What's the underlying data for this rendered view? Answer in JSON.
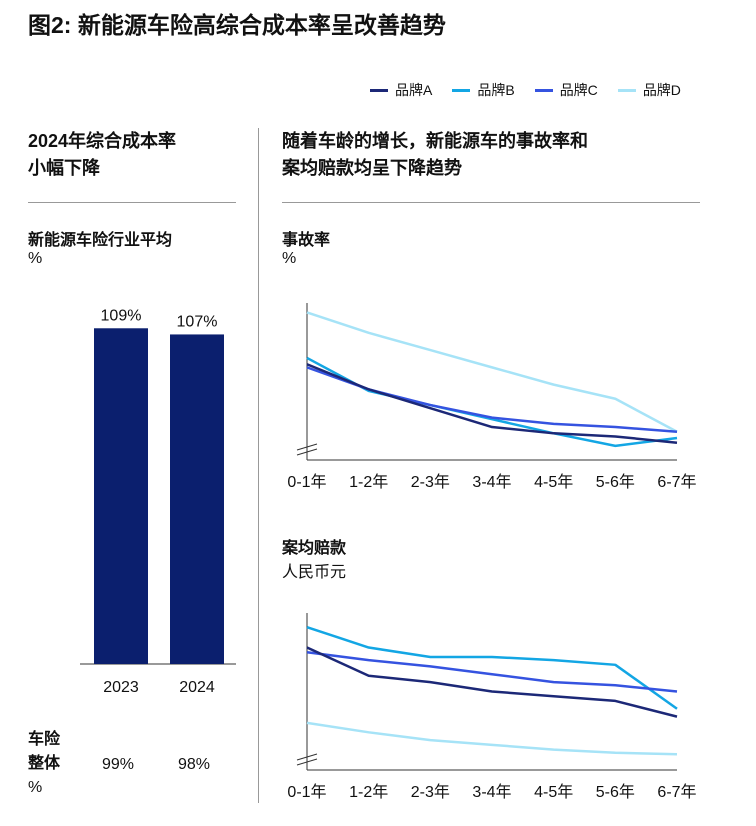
{
  "title": "图2: 新能源车险高综合成本率呈改善趋势",
  "legend": [
    {
      "name": "品牌A",
      "color": "#1c2877"
    },
    {
      "name": "品牌B",
      "color": "#13a6e4"
    },
    {
      "name": "品牌C",
      "color": "#3553e0"
    },
    {
      "name": "品牌D",
      "color": "#a6e3f7"
    }
  ],
  "left": {
    "heading1": "2024年综合成本率",
    "heading2": "小幅下降",
    "subtitle": "新能源车险行业平均",
    "unit": "%",
    "overall_label1": "车险",
    "overall_label2": "整体",
    "overall_unit": "%"
  },
  "right": {
    "heading1": "随着车龄的增长，新能源车的事故率和",
    "heading2": "案均赔款均呈下降趋势"
  },
  "chart_data": [
    {
      "type": "bar",
      "title": "新能源车险行业平均",
      "ylabel": "%",
      "categories": [
        "2023",
        "2024"
      ],
      "values": [
        109,
        107
      ],
      "data_labels": [
        "109%",
        "107%"
      ],
      "color": "#0b1f6e",
      "overall": {
        "label": "车险整体 %",
        "values": [
          "99%",
          "98%"
        ]
      }
    },
    {
      "type": "line",
      "title": "事故率",
      "ylabel": "%",
      "categories": [
        "0-1年",
        "1-2年",
        "2-3年",
        "3-4年",
        "4-5年",
        "5-6年",
        "6-7年"
      ],
      "y_axis_labels": false,
      "axis_break": true,
      "series": [
        {
          "name": "品牌A",
          "values": [
            61,
            45,
            33,
            21,
            17,
            15,
            11
          ]
        },
        {
          "name": "品牌B",
          "values": [
            65,
            44,
            35,
            26,
            17,
            9,
            14
          ]
        },
        {
          "name": "品牌C",
          "values": [
            59,
            45,
            35,
            27,
            23,
            21,
            18
          ]
        },
        {
          "name": "品牌D",
          "values": [
            94,
            81,
            70,
            59,
            48,
            39,
            18
          ]
        }
      ]
    },
    {
      "type": "line",
      "title": "案均赔款",
      "ylabel": "人民币元",
      "categories": [
        "0-1年",
        "1-2年",
        "2-3年",
        "3-4年",
        "4-5年",
        "5-6年",
        "6-7年"
      ],
      "y_axis_labels": false,
      "axis_break": true,
      "series": [
        {
          "name": "品牌A",
          "values": [
            78,
            60,
            56,
            50,
            47,
            44,
            34
          ]
        },
        {
          "name": "品牌B",
          "values": [
            91,
            78,
            72,
            72,
            70,
            67,
            39
          ]
        },
        {
          "name": "品牌C",
          "values": [
            75,
            70,
            66,
            61,
            56,
            54,
            50
          ]
        },
        {
          "name": "品牌D",
          "values": [
            30,
            24,
            19,
            16,
            13,
            11,
            10
          ]
        }
      ]
    }
  ]
}
